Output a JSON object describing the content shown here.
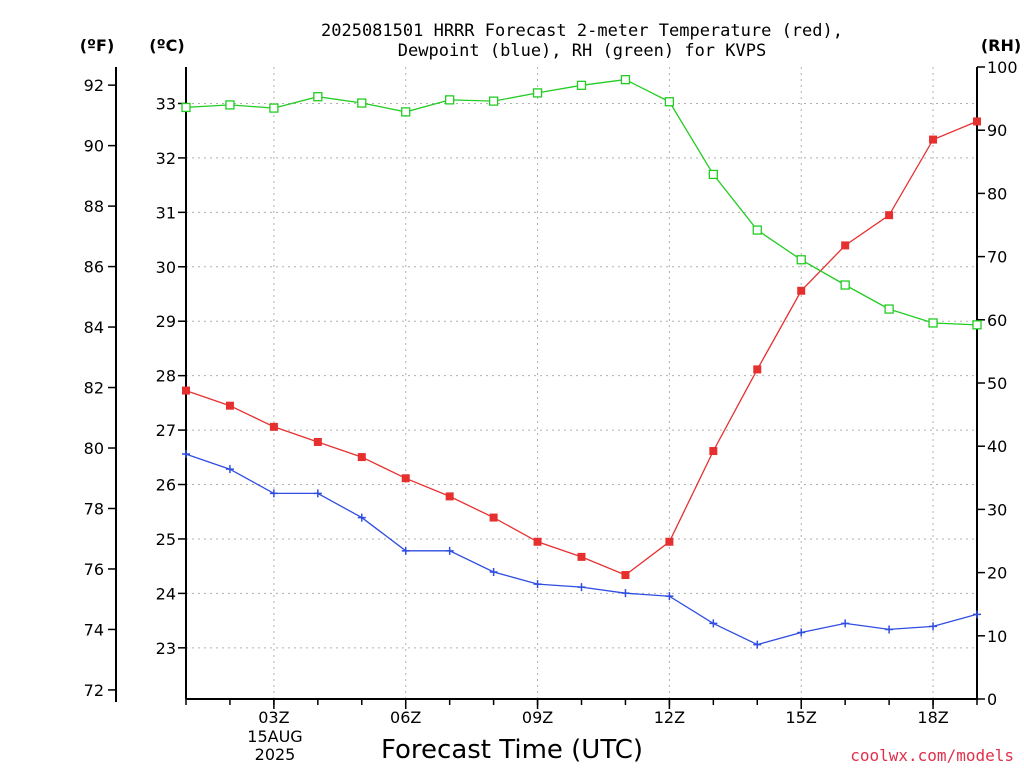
{
  "chart_data": {
    "type": "line",
    "title_line1": "2025081501 HRRR Forecast 2-meter Temperature (red),",
    "title_line2": "Dewpoint (blue), RH (green) for KVPS",
    "unit_f": "(ºF)",
    "unit_c": "(ºC)",
    "unit_rh": "(RH)",
    "xlabel": "Forecast Time (UTC)",
    "date_label": [
      "15AUG",
      "2025"
    ],
    "credit": "coolwx.com/models",
    "credit_color": "#e0304a",
    "x_hours": [
      1,
      2,
      3,
      4,
      5,
      6,
      7,
      8,
      9,
      10,
      11,
      12,
      13,
      14,
      15,
      16,
      17,
      18,
      19
    ],
    "x_ticks": [
      {
        "hour": 3,
        "label": "03Z"
      },
      {
        "hour": 6,
        "label": "06Z"
      },
      {
        "hour": 9,
        "label": "09Z"
      },
      {
        "hour": 12,
        "label": "12Z"
      },
      {
        "hour": 15,
        "label": "15Z"
      },
      {
        "hour": 18,
        "label": "18Z"
      }
    ],
    "xlim": [
      1,
      19
    ],
    "f_axis": {
      "range": [
        71.7,
        92.6
      ],
      "ticks": [
        72,
        74,
        76,
        78,
        80,
        82,
        84,
        86,
        88,
        90,
        92
      ]
    },
    "c_axis": {
      "range": [
        22.06,
        33.67
      ],
      "ticks": [
        23,
        24,
        25,
        26,
        27,
        28,
        29,
        30,
        31,
        32,
        33
      ]
    },
    "rh_axis": {
      "range": [
        0,
        100
      ],
      "ticks": [
        0,
        10,
        20,
        30,
        40,
        50,
        60,
        70,
        80,
        90,
        100
      ]
    },
    "series": [
      {
        "name": "Temperature",
        "axis": "F",
        "color": "#e63030",
        "marker": "filled-square",
        "values": [
          81.9,
          81.4,
          80.7,
          80.2,
          79.7,
          79.0,
          78.4,
          77.7,
          76.9,
          76.4,
          75.8,
          76.9,
          79.9,
          82.6,
          85.2,
          86.7,
          87.7,
          90.2,
          90.8
        ]
      },
      {
        "name": "Dewpoint",
        "axis": "F",
        "color": "#2f4de0",
        "marker": "plus",
        "values": [
          79.8,
          79.3,
          78.5,
          78.5,
          77.7,
          76.6,
          76.6,
          75.9,
          75.5,
          75.4,
          75.2,
          75.1,
          74.2,
          73.5,
          73.9,
          74.2,
          74.0,
          74.1,
          74.5
        ]
      },
      {
        "name": "RH",
        "axis": "RH",
        "color": "#22cc22",
        "marker": "open-square",
        "values": [
          93.6,
          94.0,
          93.5,
          95.3,
          94.3,
          92.9,
          94.8,
          94.6,
          95.9,
          97.1,
          98.0,
          94.5,
          83.0,
          74.2,
          69.5,
          65.5,
          61.7,
          59.5,
          59.2
        ]
      }
    ],
    "grid": true
  }
}
